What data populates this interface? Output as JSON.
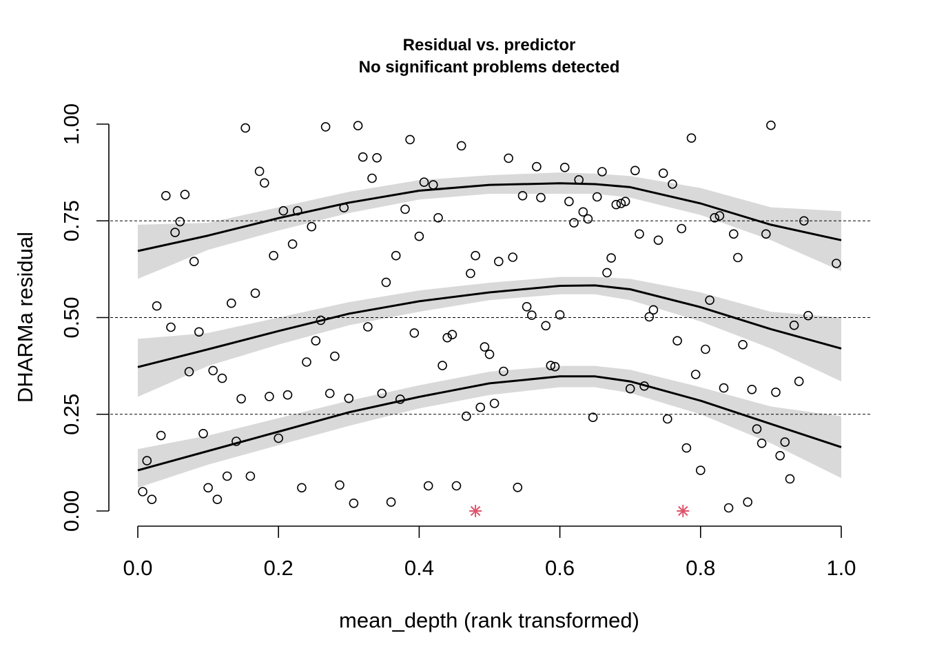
{
  "chart_data": {
    "type": "scatter",
    "title": "Residual vs. predictor",
    "subtitle": "No significant problems detected",
    "xlabel": "mean_depth (rank transformed)",
    "ylabel": "DHARMa residual",
    "xlim": [
      0.0,
      1.0
    ],
    "ylim": [
      0.0,
      1.0
    ],
    "x_ticks": [
      "0.0",
      "0.2",
      "0.4",
      "0.6",
      "0.8",
      "1.0"
    ],
    "y_ticks": [
      "0.00",
      "0.25",
      "0.50",
      "0.75",
      "1.00"
    ],
    "reference_lines": [
      0.25,
      0.5,
      0.75
    ],
    "colors": {
      "points": "#000000",
      "outliers": "#DF536B",
      "band": "#d9d9d9",
      "curve": "#000000"
    },
    "points": [
      [
        0.007,
        0.05
      ],
      [
        0.013,
        0.13
      ],
      [
        0.02,
        0.03
      ],
      [
        0.027,
        0.53
      ],
      [
        0.033,
        0.195
      ],
      [
        0.04,
        0.815
      ],
      [
        0.047,
        0.475
      ],
      [
        0.053,
        0.72
      ],
      [
        0.06,
        0.748
      ],
      [
        0.067,
        0.818
      ],
      [
        0.073,
        0.36
      ],
      [
        0.08,
        0.645
      ],
      [
        0.087,
        0.463
      ],
      [
        0.093,
        0.2
      ],
      [
        0.1,
        0.06
      ],
      [
        0.107,
        0.363
      ],
      [
        0.113,
        0.03
      ],
      [
        0.12,
        0.343
      ],
      [
        0.127,
        0.09
      ],
      [
        0.133,
        0.537
      ],
      [
        0.14,
        0.18
      ],
      [
        0.147,
        0.29
      ],
      [
        0.153,
        0.99
      ],
      [
        0.16,
        0.09
      ],
      [
        0.167,
        0.563
      ],
      [
        0.173,
        0.878
      ],
      [
        0.18,
        0.848
      ],
      [
        0.187,
        0.296
      ],
      [
        0.193,
        0.66
      ],
      [
        0.2,
        0.188
      ],
      [
        0.207,
        0.776
      ],
      [
        0.213,
        0.3
      ],
      [
        0.22,
        0.69
      ],
      [
        0.227,
        0.776
      ],
      [
        0.233,
        0.06
      ],
      [
        0.24,
        0.385
      ],
      [
        0.247,
        0.735
      ],
      [
        0.253,
        0.44
      ],
      [
        0.26,
        0.493
      ],
      [
        0.267,
        0.993
      ],
      [
        0.273,
        0.304
      ],
      [
        0.28,
        0.4
      ],
      [
        0.287,
        0.067
      ],
      [
        0.293,
        0.784
      ],
      [
        0.3,
        0.291
      ],
      [
        0.307,
        0.02
      ],
      [
        0.313,
        0.996
      ],
      [
        0.32,
        0.915
      ],
      [
        0.327,
        0.476
      ],
      [
        0.333,
        0.86
      ],
      [
        0.34,
        0.913
      ],
      [
        0.347,
        0.304
      ],
      [
        0.353,
        0.591
      ],
      [
        0.36,
        0.023
      ],
      [
        0.367,
        0.66
      ],
      [
        0.373,
        0.289
      ],
      [
        0.38,
        0.78
      ],
      [
        0.387,
        0.96
      ],
      [
        0.393,
        0.46
      ],
      [
        0.4,
        0.71
      ],
      [
        0.407,
        0.85
      ],
      [
        0.413,
        0.065
      ],
      [
        0.42,
        0.843
      ],
      [
        0.427,
        0.758
      ],
      [
        0.433,
        0.376
      ],
      [
        0.44,
        0.448
      ],
      [
        0.447,
        0.456
      ],
      [
        0.453,
        0.065
      ],
      [
        0.46,
        0.944
      ],
      [
        0.467,
        0.245
      ],
      [
        0.473,
        0.614
      ],
      [
        0.48,
        0.66
      ],
      [
        0.487,
        0.268
      ],
      [
        0.493,
        0.424
      ],
      [
        0.5,
        0.405
      ],
      [
        0.507,
        0.278
      ],
      [
        0.513,
        0.645
      ],
      [
        0.52,
        0.361
      ],
      [
        0.527,
        0.912
      ],
      [
        0.533,
        0.656
      ],
      [
        0.54,
        0.061
      ],
      [
        0.547,
        0.815
      ],
      [
        0.553,
        0.528
      ],
      [
        0.56,
        0.506
      ],
      [
        0.567,
        0.89
      ],
      [
        0.573,
        0.81
      ],
      [
        0.58,
        0.479
      ],
      [
        0.587,
        0.376
      ],
      [
        0.593,
        0.373
      ],
      [
        0.6,
        0.507
      ],
      [
        0.607,
        0.888
      ],
      [
        0.613,
        0.8
      ],
      [
        0.62,
        0.745
      ],
      [
        0.627,
        0.856
      ],
      [
        0.633,
        0.773
      ],
      [
        0.64,
        0.755
      ],
      [
        0.647,
        0.242
      ],
      [
        0.653,
        0.812
      ],
      [
        0.66,
        0.877
      ],
      [
        0.667,
        0.616
      ],
      [
        0.673,
        0.654
      ],
      [
        0.68,
        0.792
      ],
      [
        0.687,
        0.795
      ],
      [
        0.693,
        0.8
      ],
      [
        0.7,
        0.316
      ],
      [
        0.707,
        0.88
      ],
      [
        0.713,
        0.716
      ],
      [
        0.72,
        0.323
      ],
      [
        0.727,
        0.502
      ],
      [
        0.733,
        0.52
      ],
      [
        0.74,
        0.7
      ],
      [
        0.747,
        0.873
      ],
      [
        0.753,
        0.238
      ],
      [
        0.76,
        0.845
      ],
      [
        0.767,
        0.44
      ],
      [
        0.773,
        0.73
      ],
      [
        0.78,
        0.163
      ],
      [
        0.787,
        0.964
      ],
      [
        0.793,
        0.353
      ],
      [
        0.8,
        0.105
      ],
      [
        0.807,
        0.418
      ],
      [
        0.813,
        0.545
      ],
      [
        0.82,
        0.758
      ],
      [
        0.827,
        0.763
      ],
      [
        0.833,
        0.318
      ],
      [
        0.84,
        0.008
      ],
      [
        0.847,
        0.716
      ],
      [
        0.853,
        0.655
      ],
      [
        0.86,
        0.43
      ],
      [
        0.867,
        0.023
      ],
      [
        0.873,
        0.314
      ],
      [
        0.88,
        0.212
      ],
      [
        0.887,
        0.175
      ],
      [
        0.893,
        0.716
      ],
      [
        0.9,
        0.997
      ],
      [
        0.907,
        0.307
      ],
      [
        0.913,
        0.143
      ],
      [
        0.92,
        0.178
      ],
      [
        0.927,
        0.083
      ],
      [
        0.933,
        0.48
      ],
      [
        0.94,
        0.335
      ],
      [
        0.947,
        0.75
      ],
      [
        0.953,
        0.505
      ],
      [
        0.993,
        0.64
      ]
    ],
    "outliers": [
      [
        0.48,
        0.0
      ],
      [
        0.775,
        0.0
      ]
    ],
    "quantile_curves": [
      {
        "quantile": 0.25,
        "x": [
          0.0,
          0.1,
          0.2,
          0.3,
          0.4,
          0.5,
          0.6,
          0.65,
          0.7,
          0.8,
          0.9,
          1.0
        ],
        "y": [
          0.105,
          0.155,
          0.205,
          0.255,
          0.295,
          0.33,
          0.348,
          0.348,
          0.335,
          0.285,
          0.225,
          0.165
        ],
        "band": [
          0.06,
          0.12,
          0.17,
          0.22,
          0.265,
          0.3,
          0.32,
          0.32,
          0.305,
          0.25,
          0.175,
          0.085
        ],
        "band_upper": [
          0.16,
          0.195,
          0.24,
          0.285,
          0.325,
          0.36,
          0.375,
          0.375,
          0.365,
          0.32,
          0.27,
          0.245
        ]
      },
      {
        "quantile": 0.5,
        "x": [
          0.0,
          0.1,
          0.2,
          0.3,
          0.4,
          0.5,
          0.6,
          0.65,
          0.7,
          0.8,
          0.9,
          1.0
        ],
        "y": [
          0.372,
          0.418,
          0.465,
          0.51,
          0.542,
          0.565,
          0.582,
          0.583,
          0.573,
          0.527,
          0.47,
          0.42
        ],
        "band": [
          0.295,
          0.375,
          0.43,
          0.48,
          0.515,
          0.545,
          0.56,
          0.56,
          0.545,
          0.49,
          0.42,
          0.335
        ],
        "band_upper": [
          0.445,
          0.46,
          0.5,
          0.54,
          0.57,
          0.59,
          0.605,
          0.605,
          0.6,
          0.565,
          0.515,
          0.5
        ]
      },
      {
        "quantile": 0.75,
        "x": [
          0.0,
          0.1,
          0.2,
          0.3,
          0.4,
          0.5,
          0.6,
          0.65,
          0.7,
          0.8,
          0.9,
          1.0
        ],
        "y": [
          0.672,
          0.712,
          0.757,
          0.797,
          0.828,
          0.843,
          0.847,
          0.845,
          0.837,
          0.795,
          0.74,
          0.7
        ],
        "band": [
          0.6,
          0.675,
          0.725,
          0.77,
          0.805,
          0.82,
          0.82,
          0.82,
          0.81,
          0.765,
          0.7,
          0.62
        ],
        "band_upper": [
          0.74,
          0.745,
          0.785,
          0.825,
          0.855,
          0.868,
          0.875,
          0.872,
          0.866,
          0.835,
          0.785,
          0.775
        ]
      }
    ]
  }
}
